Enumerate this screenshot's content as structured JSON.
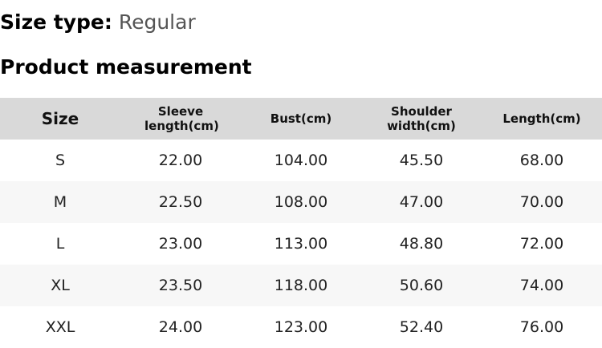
{
  "size_type": {
    "label": "Size type:",
    "value": "Regular"
  },
  "section_title": "Product measurement",
  "table": {
    "headers": [
      "Size",
      "Sleeve length(cm)",
      "Bust(cm)",
      "Shoulder width(cm)",
      "Length(cm)"
    ],
    "rows": [
      [
        "S",
        "22.00",
        "104.00",
        "45.50",
        "68.00"
      ],
      [
        "M",
        "22.50",
        "108.00",
        "47.00",
        "70.00"
      ],
      [
        "L",
        "23.00",
        "113.00",
        "48.80",
        "72.00"
      ],
      [
        "XL",
        "23.50",
        "118.00",
        "50.60",
        "74.00"
      ],
      [
        "XXL",
        "24.00",
        "123.00",
        "52.40",
        "76.00"
      ]
    ]
  }
}
